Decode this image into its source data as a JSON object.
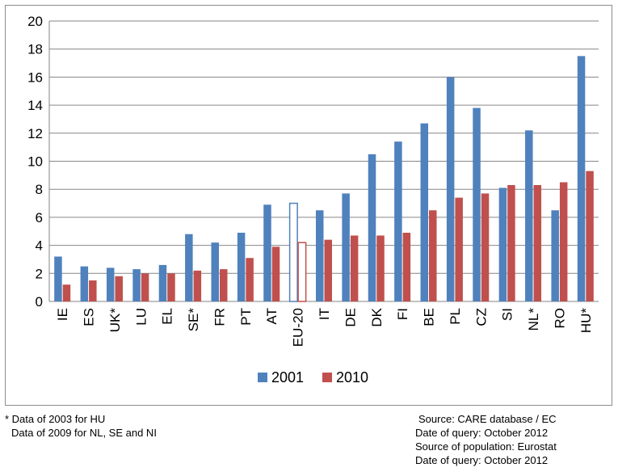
{
  "chart_data": {
    "type": "bar",
    "categories": [
      "IE",
      "ES",
      "UK*",
      "LU",
      "EL",
      "SE*",
      "FR",
      "PT",
      "AT",
      "EU-20",
      "IT",
      "DE",
      "DK",
      "FI",
      "BE",
      "PL",
      "CZ",
      "SI",
      "NL*",
      "RO",
      "HU*"
    ],
    "series": [
      {
        "name": "2001",
        "color": "#4f81bd",
        "values": [
          3.2,
          2.5,
          2.4,
          2.3,
          2.6,
          4.8,
          4.2,
          4.9,
          6.9,
          7.0,
          6.5,
          7.7,
          10.5,
          11.4,
          12.7,
          16.0,
          13.8,
          8.1,
          12.2,
          6.5,
          17.5
        ]
      },
      {
        "name": "2010",
        "color": "#c0504d",
        "values": [
          1.2,
          1.5,
          1.8,
          2.0,
          2.0,
          2.2,
          2.3,
          3.1,
          3.9,
          4.2,
          4.4,
          4.7,
          4.7,
          4.9,
          6.5,
          7.4,
          7.7,
          8.3,
          8.3,
          8.5,
          9.3
        ]
      }
    ],
    "highlight_category": "EU-20",
    "ylim": [
      0,
      20
    ],
    "yticks": [
      "0",
      "2",
      "4",
      "6",
      "8",
      "10",
      "12",
      "14",
      "16",
      "18",
      "20"
    ],
    "grid": true,
    "legend_position": "bottom"
  },
  "notes": {
    "left": [
      "* Data of 2003 for HU",
      "Data of 2009 for NL,  SE and NI"
    ],
    "right": [
      "Source: CARE database / EC",
      "Date of query: October 2012",
      "Source of population: Eurostat",
      "Date of query: October 2012"
    ]
  }
}
